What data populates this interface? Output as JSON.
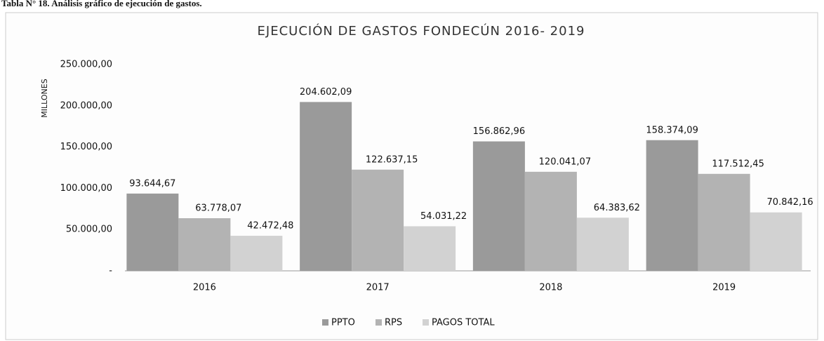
{
  "caption": "Tabla N° 18. Análisis gráfico de ejecución de gastos.",
  "chart_data": {
    "type": "bar",
    "title": "EJECUCIÓN DE GASTOS FONDECÚN 2016- 2019",
    "y_label": "MILLONES",
    "categories": [
      "2016",
      "2017",
      "2018",
      "2019"
    ],
    "series": [
      {
        "name": "PPTO",
        "color": "#9a9a9a",
        "values": [
          93644.67,
          204602.09,
          156862.96,
          158374.09
        ],
        "value_labels": [
          "93.644,67",
          "204.602,09",
          "156.862,96",
          "158.374,09"
        ]
      },
      {
        "name": "RPS",
        "color": "#b3b3b3",
        "values": [
          63778.07,
          122637.15,
          120041.07,
          117512.45
        ],
        "value_labels": [
          "63.778,07",
          "122.637,15",
          "120.041,07",
          "117.512,45"
        ]
      },
      {
        "name": "PAGOS TOTAL",
        "color": "#d2d2d2",
        "values": [
          42472.48,
          54031.22,
          64383.62,
          70842.16
        ],
        "value_labels": [
          "42.472,48",
          "54.031,22",
          "64.383,62",
          "70.842,16"
        ]
      }
    ],
    "ylim": [
      0,
      250000
    ],
    "yticks": [
      {
        "value": 0,
        "label": "-"
      },
      {
        "value": 50000,
        "label": "50.000,00"
      },
      {
        "value": 100000,
        "label": "100.000,00"
      },
      {
        "value": 150000,
        "label": "150.000,00"
      },
      {
        "value": 200000,
        "label": "200.000,00"
      },
      {
        "value": 250000,
        "label": "250.000,00"
      }
    ],
    "legend": "bottom"
  }
}
